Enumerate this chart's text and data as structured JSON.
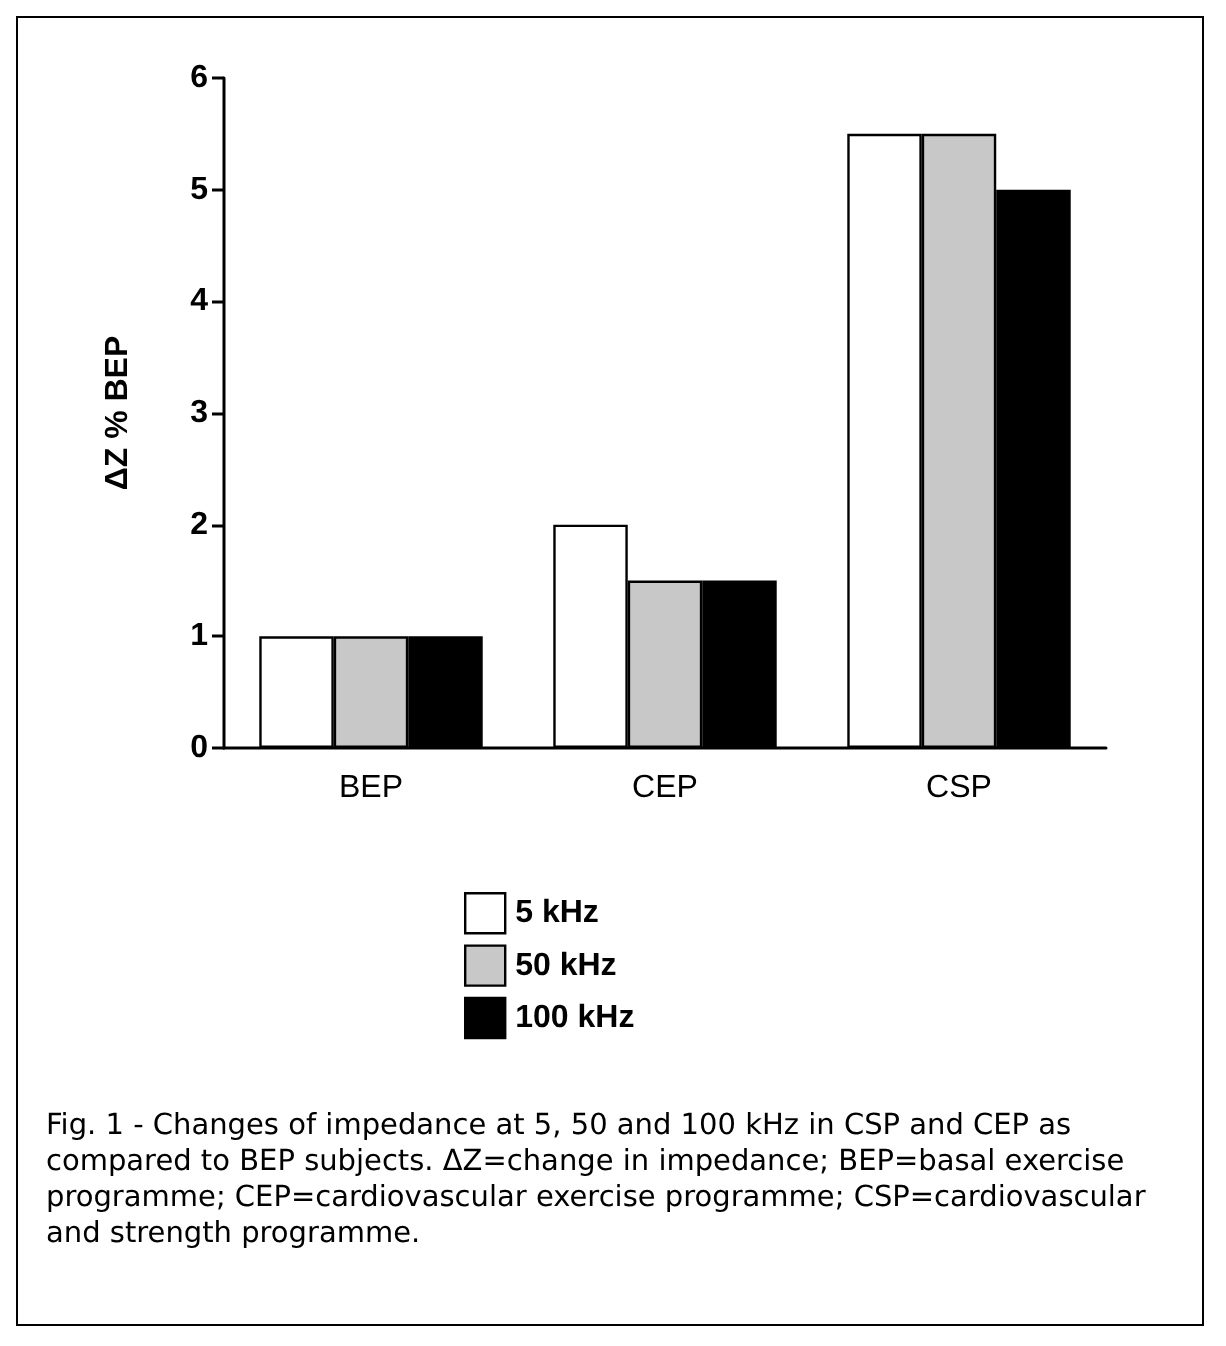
{
  "chart_data": {
    "type": "bar",
    "ylabel": "ΔZ % BEP",
    "categories": [
      "BEP",
      "CEP",
      "CSP"
    ],
    "series": [
      {
        "name": "5 kHz",
        "color": "#ffffff",
        "values": [
          1,
          2,
          5.5
        ]
      },
      {
        "name": "50 kHz",
        "color": "#c8c8c8",
        "values": [
          1,
          1.5,
          5.5
        ]
      },
      {
        "name": "100 kHz",
        "color": "#000000",
        "values": [
          1,
          1.5,
          5
        ]
      }
    ],
    "ylim": [
      0,
      6
    ],
    "yticks": [
      0,
      1,
      2,
      3,
      4,
      5,
      6
    ],
    "grid": false,
    "legend": "bottom",
    "annotations": [
      "Fig. 1 - Changes of impedance at 5, 50 and 100 kHz in CSP and CEP as compared to BEP subjects. ΔZ=change in impedance; BEP=basal exercise programme; CEP=cardiovascular exercise programme; CSP=cardiovascular and strength programme."
    ]
  }
}
